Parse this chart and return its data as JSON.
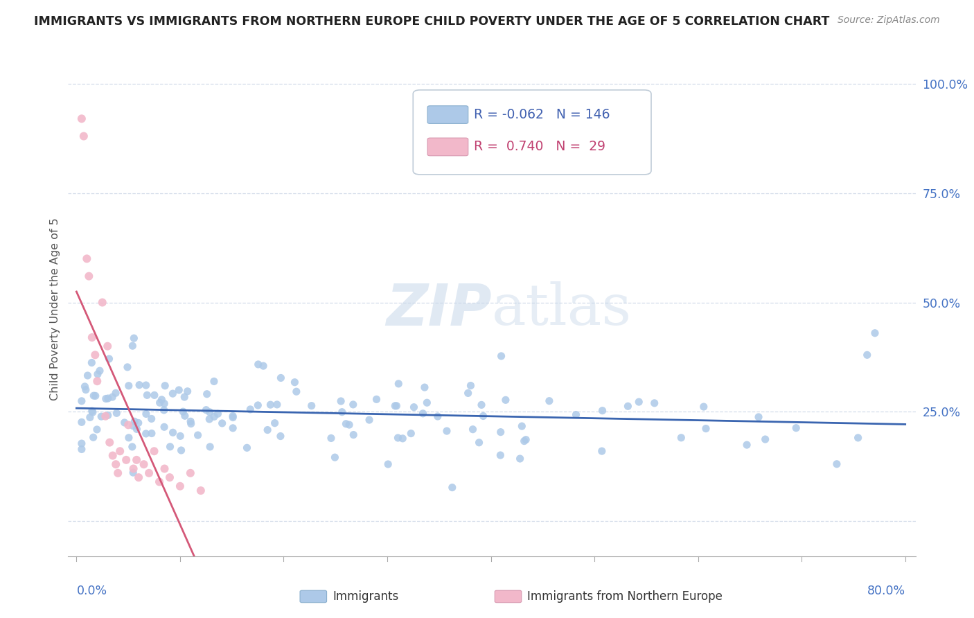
{
  "title": "IMMIGRANTS VS IMMIGRANTS FROM NORTHERN EUROPE CHILD POVERTY UNDER THE AGE OF 5 CORRELATION CHART",
  "source": "Source: ZipAtlas.com",
  "ylabel": "Child Poverty Under the Age of 5",
  "watermark_zip": "ZIP",
  "watermark_atlas": "atlas",
  "blue_color": "#adc9e8",
  "blue_line_color": "#3a65b0",
  "pink_color": "#f2b8ca",
  "pink_line_color": "#d45878",
  "blue_R": -0.062,
  "blue_N": 146,
  "pink_R": 0.74,
  "pink_N": 29,
  "ytick_vals": [
    0.0,
    0.25,
    0.5,
    0.75,
    1.0
  ],
  "ytick_labels": [
    "",
    "25.0%",
    "50.0%",
    "75.0%",
    "100.0%"
  ],
  "xmin": 0.0,
  "xmax": 0.8,
  "ymin": -0.08,
  "ymax": 1.05
}
